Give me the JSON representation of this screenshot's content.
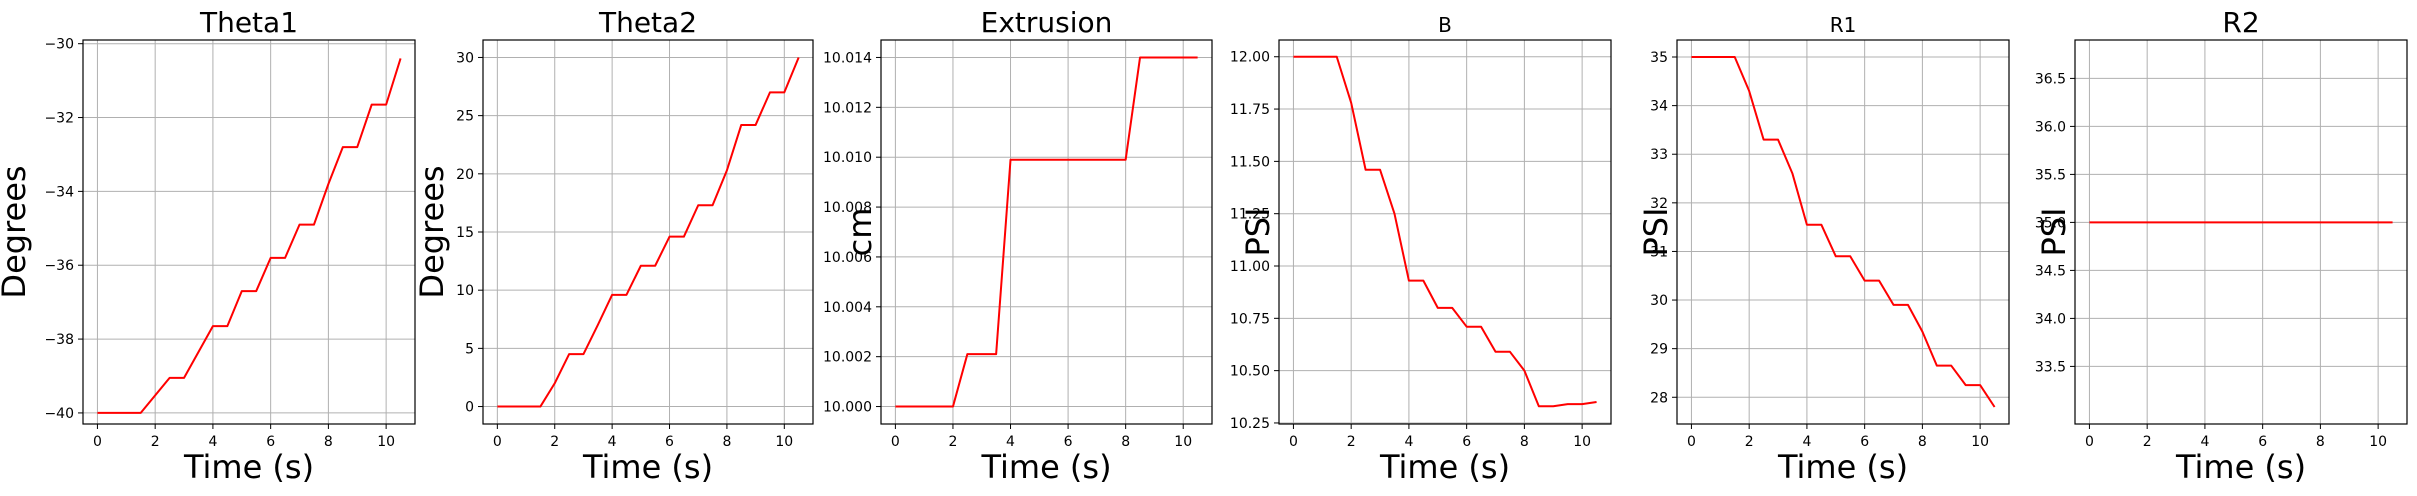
{
  "figure": {
    "background": "#ffffff",
    "line_color": "#ff0000",
    "grid_color": "#b0b0b0"
  },
  "chart_data": [
    {
      "type": "line",
      "title": "Theta1",
      "xlabel": "Time (s)",
      "ylabel": "Degrees",
      "xlim": [
        -0.5,
        11.0
      ],
      "ylim": [
        -40.3,
        -29.9
      ],
      "xticks": [
        0,
        2,
        4,
        6,
        8,
        10
      ],
      "xtick_labels": [
        "0",
        "2",
        "4",
        "6",
        "8",
        "10"
      ],
      "yticks": [
        -40,
        -38,
        -36,
        -34,
        -32,
        -30
      ],
      "ytick_labels": [
        "−40",
        "−38",
        "−36",
        "−34",
        "−32",
        "−30"
      ],
      "grid": true,
      "series": [
        {
          "color": "#ff0000",
          "x": [
            0,
            1.5,
            2.5,
            3.0,
            4.0,
            4.5,
            5.0,
            5.5,
            6.0,
            6.5,
            7.0,
            7.5,
            8.0,
            8.5,
            9.0,
            9.5,
            10.0,
            10.5
          ],
          "y": [
            -40.0,
            -40.0,
            -39.05,
            -39.05,
            -37.65,
            -37.65,
            -36.7,
            -36.7,
            -35.8,
            -35.8,
            -34.9,
            -34.9,
            -33.8,
            -32.8,
            -32.8,
            -31.65,
            -31.65,
            -30.4
          ]
        }
      ]
    },
    {
      "type": "line",
      "title": "Theta2",
      "xlabel": "Time (s)",
      "ylabel": "Degrees",
      "xlim": [
        -0.5,
        11.0
      ],
      "ylim": [
        -1.5,
        31.5
      ],
      "xticks": [
        0,
        2,
        4,
        6,
        8,
        10
      ],
      "xtick_labels": [
        "0",
        "2",
        "4",
        "6",
        "8",
        "10"
      ],
      "yticks": [
        0,
        5,
        10,
        15,
        20,
        25,
        30
      ],
      "ytick_labels": [
        "0",
        "5",
        "10",
        "15",
        "20",
        "25",
        "30"
      ],
      "grid": true,
      "series": [
        {
          "color": "#ff0000",
          "x": [
            0,
            1.5,
            2.0,
            2.5,
            3.0,
            3.5,
            4.0,
            4.5,
            5.0,
            5.5,
            6.0,
            6.5,
            7.0,
            7.5,
            8.0,
            8.5,
            9.0,
            9.5,
            10.0,
            10.5
          ],
          "y": [
            0,
            0,
            2.0,
            4.5,
            4.5,
            7.0,
            9.6,
            9.6,
            12.1,
            12.1,
            14.6,
            14.6,
            17.3,
            17.3,
            20.3,
            24.2,
            24.2,
            27.0,
            27.0,
            30.0
          ]
        }
      ]
    },
    {
      "type": "line",
      "title": "Extrusion",
      "xlabel": "Time (s)",
      "ylabel": "cm",
      "xlim": [
        -0.5,
        11.0
      ],
      "ylim": [
        9.9993,
        10.0147
      ],
      "xticks": [
        0,
        2,
        4,
        6,
        8,
        10
      ],
      "xtick_labels": [
        "0",
        "2",
        "4",
        "6",
        "8",
        "10"
      ],
      "yticks": [
        10.0,
        10.002,
        10.004,
        10.006,
        10.008,
        10.01,
        10.012,
        10.014
      ],
      "ytick_labels": [
        "10.000",
        "10.002",
        "10.004",
        "10.006",
        "10.008",
        "10.010",
        "10.012",
        "10.014"
      ],
      "grid": true,
      "series": [
        {
          "color": "#ff0000",
          "x": [
            0,
            2.0,
            2.5,
            3.5,
            4.0,
            8.0,
            8.5,
            10.5
          ],
          "y": [
            10.0,
            10.0,
            10.0021,
            10.0021,
            10.0099,
            10.0099,
            10.014,
            10.014
          ]
        }
      ]
    },
    {
      "type": "line",
      "title": "B",
      "xlabel": "Time (s)",
      "ylabel": "PSI",
      "xlim": [
        -0.5,
        11.0
      ],
      "ylim": [
        10.245,
        12.08
      ],
      "xticks": [
        0,
        2,
        4,
        6,
        8,
        10
      ],
      "xtick_labels": [
        "0",
        "2",
        "4",
        "6",
        "8",
        "10"
      ],
      "yticks": [
        10.25,
        10.5,
        10.75,
        11.0,
        11.25,
        11.5,
        11.75,
        12.0
      ],
      "ytick_labels": [
        "10.25",
        "10.50",
        "10.75",
        "11.00",
        "11.25",
        "11.50",
        "11.75",
        "12.00"
      ],
      "grid": true,
      "series": [
        {
          "color": "#ff0000",
          "x": [
            0,
            1.5,
            2.0,
            2.5,
            3.0,
            3.5,
            4.0,
            4.5,
            5.0,
            5.5,
            6.0,
            6.5,
            7.0,
            7.5,
            8.0,
            8.5,
            9.0,
            9.5,
            10.0,
            10.5
          ],
          "y": [
            12.0,
            12.0,
            11.78,
            11.46,
            11.46,
            11.25,
            10.93,
            10.93,
            10.8,
            10.8,
            10.71,
            10.71,
            10.59,
            10.59,
            10.5,
            10.33,
            10.33,
            10.34,
            10.34,
            10.35
          ]
        }
      ]
    },
    {
      "type": "line",
      "title": "R1",
      "xlabel": "Time (s)",
      "ylabel": "PSI",
      "xlim": [
        -0.5,
        11.0
      ],
      "ylim": [
        27.45,
        35.35
      ],
      "xticks": [
        0,
        2,
        4,
        6,
        8,
        10
      ],
      "xtick_labels": [
        "0",
        "2",
        "4",
        "6",
        "8",
        "10"
      ],
      "yticks": [
        28,
        29,
        30,
        31,
        32,
        33,
        34,
        35
      ],
      "ytick_labels": [
        "28",
        "29",
        "30",
        "31",
        "32",
        "33",
        "34",
        "35"
      ],
      "grid": true,
      "series": [
        {
          "color": "#ff0000",
          "x": [
            0,
            1.5,
            2.0,
            2.5,
            3.0,
            3.5,
            4.0,
            4.5,
            5.0,
            5.5,
            6.0,
            6.5,
            7.0,
            7.5,
            8.0,
            8.5,
            9.0,
            9.5,
            10.0,
            10.5
          ],
          "y": [
            35.0,
            35.0,
            34.3,
            33.3,
            33.3,
            32.6,
            31.55,
            31.55,
            30.9,
            30.9,
            30.4,
            30.4,
            29.9,
            29.9,
            29.35,
            28.65,
            28.65,
            28.25,
            28.25,
            27.8
          ]
        }
      ]
    },
    {
      "type": "line",
      "title": "R2",
      "xlabel": "Time (s)",
      "ylabel": "PSI",
      "xlim": [
        -0.5,
        11.0
      ],
      "ylim": [
        32.9,
        36.9
      ],
      "xticks": [
        0,
        2,
        4,
        6,
        8,
        10
      ],
      "xtick_labels": [
        "0",
        "2",
        "4",
        "6",
        "8",
        "10"
      ],
      "yticks": [
        33.5,
        34.0,
        34.5,
        35.0,
        35.5,
        36.0,
        36.5
      ],
      "ytick_labels": [
        "33.5",
        "34.0",
        "34.5",
        "35.0",
        "35.5",
        "36.0",
        "36.5"
      ],
      "grid": true,
      "series": [
        {
          "color": "#ff0000",
          "x": [
            0,
            10.5
          ],
          "y": [
            35.0,
            35.0
          ]
        }
      ]
    }
  ]
}
